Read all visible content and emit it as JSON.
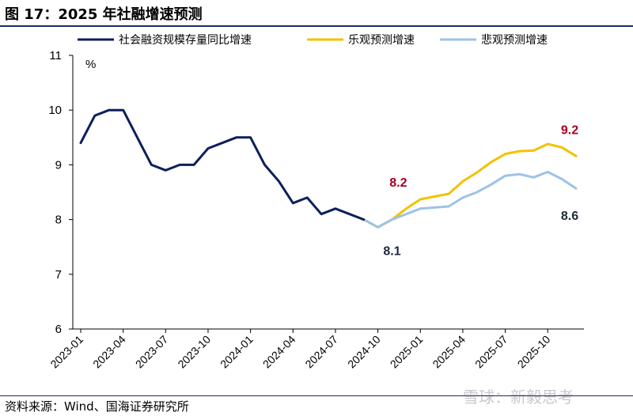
{
  "figure": {
    "title": "图 17：2025 年社融增速预测",
    "source": "资料来源：Wind、国海证券研究所",
    "watermark": "雪球：新毅思考"
  },
  "chart_data": {
    "type": "line",
    "ylabel": "%",
    "ylim": [
      6,
      11
    ],
    "yticks": [
      "6",
      "7",
      "8",
      "9",
      "10",
      "11"
    ],
    "xticks": [
      "2023-01",
      "2023-04",
      "2023-07",
      "2023-10",
      "2024-01",
      "2024-04",
      "2024-07",
      "2024-10",
      "2025-01",
      "2025-04",
      "2025-07",
      "2025-10"
    ],
    "series": [
      {
        "name": "社会融资规模存量同比增速",
        "color": "#0d1f5c",
        "points": [
          [
            "2023-01",
            9.4
          ],
          [
            "2023-02",
            9.9
          ],
          [
            "2023-03",
            10.0
          ],
          [
            "2023-04",
            10.0
          ],
          [
            "2023-05",
            9.5
          ],
          [
            "2023-06",
            9.0
          ],
          [
            "2023-07",
            8.9
          ],
          [
            "2023-08",
            9.0
          ],
          [
            "2023-09",
            9.0
          ],
          [
            "2023-10",
            9.3
          ],
          [
            "2023-11",
            9.4
          ],
          [
            "2023-12",
            9.5
          ],
          [
            "2024-01",
            9.5
          ],
          [
            "2024-02",
            9.0
          ],
          [
            "2024-03",
            8.7
          ],
          [
            "2024-04",
            8.3
          ],
          [
            "2024-05",
            8.4
          ],
          [
            "2024-06",
            8.1
          ],
          [
            "2024-07",
            8.2
          ],
          [
            "2024-08",
            8.1
          ],
          [
            "2024-09",
            8.0
          ]
        ]
      },
      {
        "name": "乐观预测增速",
        "color": "#f5c100",
        "points": [
          [
            "2024-09",
            8.0
          ],
          [
            "2024-10",
            7.86
          ],
          [
            "2024-11",
            8.0
          ],
          [
            "2024-12",
            8.2
          ],
          [
            "2025-01",
            8.37
          ],
          [
            "2025-02",
            8.42
          ],
          [
            "2025-03",
            8.47
          ],
          [
            "2025-04",
            8.7
          ],
          [
            "2025-05",
            8.86
          ],
          [
            "2025-06",
            9.05
          ],
          [
            "2025-07",
            9.2
          ],
          [
            "2025-08",
            9.25
          ],
          [
            "2025-09",
            9.26
          ],
          [
            "2025-10",
            9.38
          ],
          [
            "2025-11",
            9.32
          ],
          [
            "2025-12",
            9.16
          ]
        ]
      },
      {
        "name": "悲观预测增速",
        "color": "#9dc3e6",
        "points": [
          [
            "2024-09",
            8.0
          ],
          [
            "2024-10",
            7.86
          ],
          [
            "2024-11",
            8.0
          ],
          [
            "2024-12",
            8.1
          ],
          [
            "2025-01",
            8.2
          ],
          [
            "2025-02",
            8.22
          ],
          [
            "2025-03",
            8.24
          ],
          [
            "2025-04",
            8.4
          ],
          [
            "2025-05",
            8.5
          ],
          [
            "2025-06",
            8.64
          ],
          [
            "2025-07",
            8.8
          ],
          [
            "2025-08",
            8.83
          ],
          [
            "2025-09",
            8.77
          ],
          [
            "2025-10",
            8.87
          ],
          [
            "2025-11",
            8.74
          ],
          [
            "2025-12",
            8.57
          ]
        ]
      }
    ],
    "annotations": [
      {
        "text": "8.2",
        "color": "#a50021",
        "anchor": "2024-12"
      },
      {
        "text": "9.2",
        "color": "#a50021",
        "anchor": "2025-12"
      },
      {
        "text": "8.1",
        "color": "#1f2a3c",
        "anchor": "2024-11"
      },
      {
        "text": "8.6",
        "color": "#1f2a3c",
        "anchor": "2025-12"
      }
    ],
    "legend": "top"
  }
}
